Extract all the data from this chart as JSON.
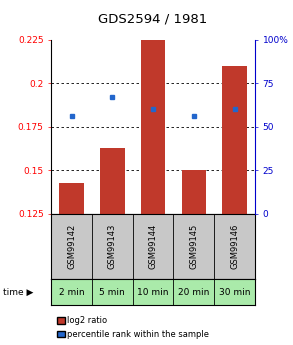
{
  "title": "GDS2594 / 1981",
  "samples": [
    "GSM99142",
    "GSM99143",
    "GSM99144",
    "GSM99145",
    "GSM99146"
  ],
  "time_labels": [
    "2 min",
    "5 min",
    "10 min",
    "20 min",
    "30 min"
  ],
  "log2_ratio": [
    0.143,
    0.163,
    0.228,
    0.15,
    0.21
  ],
  "percentile_rank": [
    0.181,
    0.192,
    0.185,
    0.181,
    0.185
  ],
  "ylim_left": [
    0.125,
    0.225
  ],
  "ylim_right": [
    0,
    100
  ],
  "yticks_left": [
    0.125,
    0.15,
    0.175,
    0.2,
    0.225
  ],
  "yticks_right": [
    0,
    25,
    50,
    75,
    100
  ],
  "bar_color": "#c0392b",
  "dot_color": "#2266cc",
  "background_plot": "#ffffff",
  "background_header": "#c8c8c8",
  "background_time": "#aaeaaa",
  "title_fontsize": 9.5,
  "tick_fontsize": 6.5,
  "sample_fontsize": 6.0,
  "time_fontsize": 6.5,
  "legend_fontsize": 6.0
}
